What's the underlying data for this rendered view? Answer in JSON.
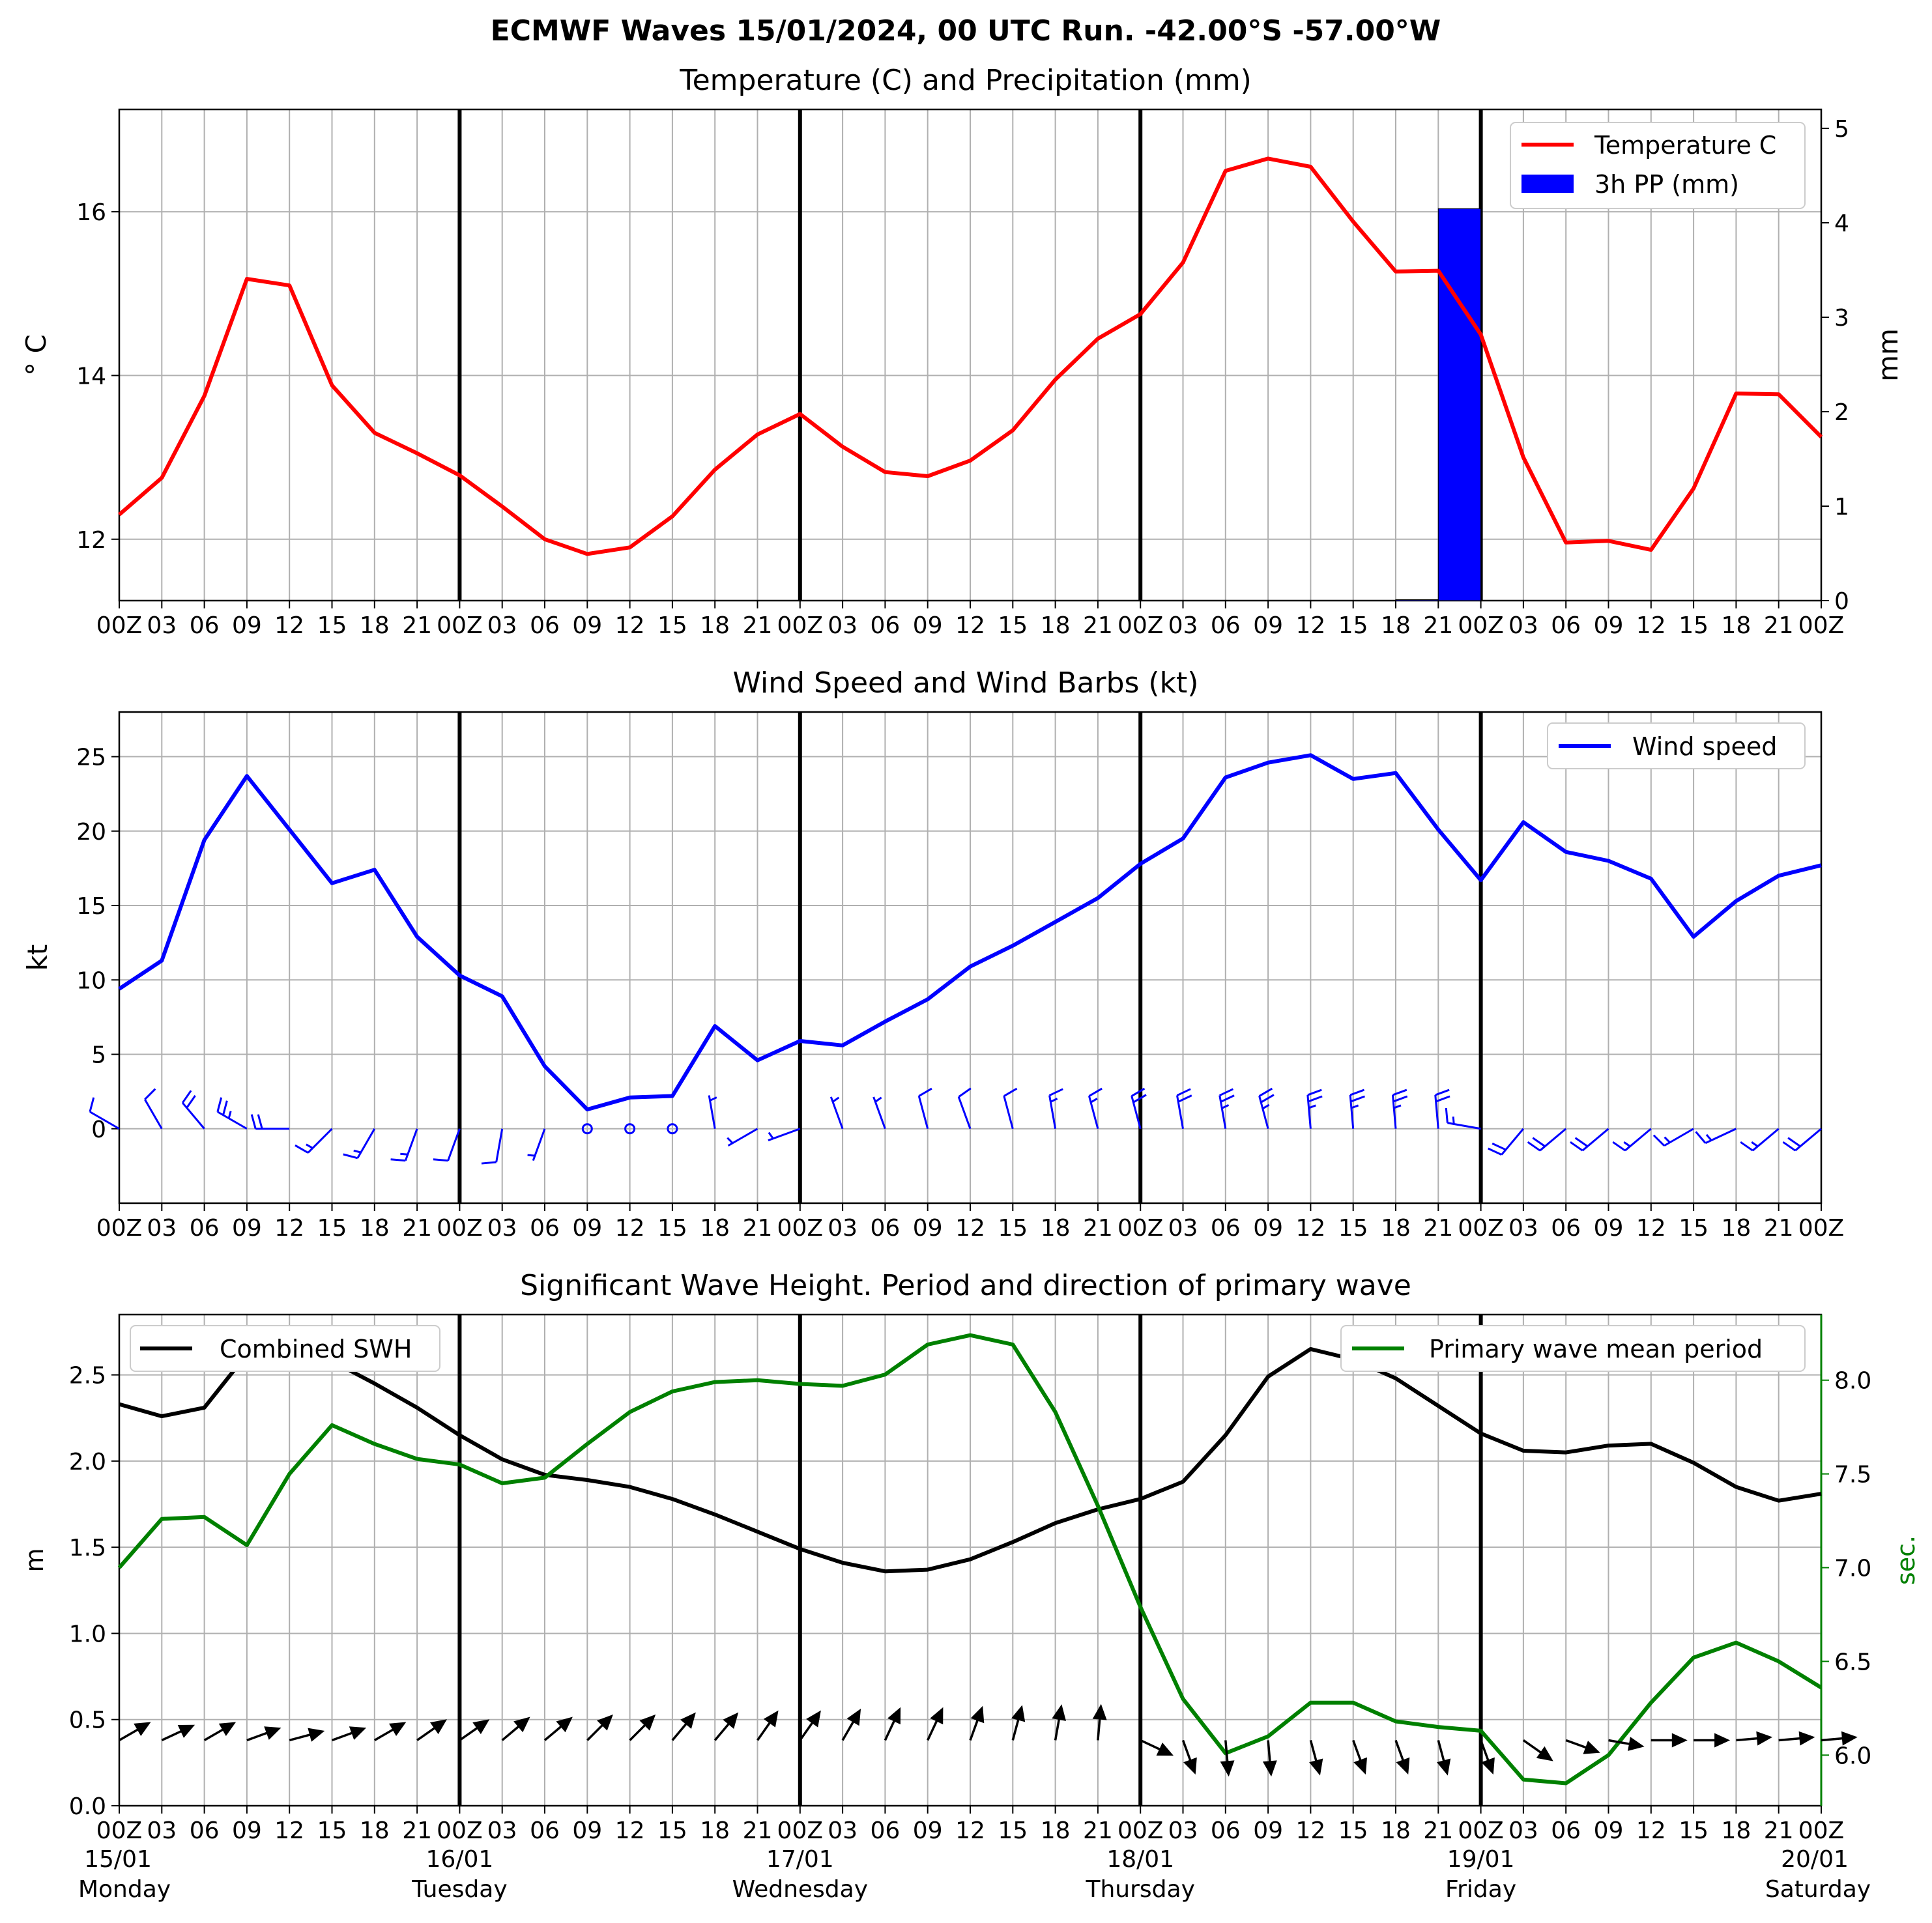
{
  "title": "ECMWF Waves 15/01/2024, 00 UTC Run. -42.00°S -57.00°W",
  "x_tick_labels": [
    "00Z",
    "03",
    "06",
    "09",
    "12",
    "15",
    "18",
    "21",
    "00Z",
    "03",
    "06",
    "09",
    "12",
    "15",
    "18",
    "21",
    "00Z",
    "03",
    "06",
    "09",
    "12",
    "15",
    "18",
    "21",
    "00Z",
    "03",
    "06",
    "09",
    "12",
    "15",
    "18",
    "21",
    "00Z",
    "03",
    "06",
    "09",
    "12",
    "15",
    "18",
    "21",
    "00Z"
  ],
  "x_tick_labels_panel3": [
    "00Z",
    "03",
    "06",
    "09",
    "12",
    "15",
    "18",
    "21",
    "00Z",
    "03",
    "06",
    "09",
    "12",
    "15",
    "18",
    "21",
    "00Z",
    "03",
    "06",
    "09",
    "12",
    "15",
    "18",
    "21",
    "00Z",
    "03",
    "06",
    "09",
    "12",
    "15",
    "18",
    "21",
    "00Z",
    "03",
    "06",
    "09",
    "12",
    "15",
    "18",
    "21",
    "00Z"
  ],
  "day_labels": [
    {
      "date": "15/01",
      "day": "Monday"
    },
    {
      "date": "16/01",
      "day": "Tuesday"
    },
    {
      "date": "17/01",
      "day": "Wednesday"
    },
    {
      "date": "18/01",
      "day": "Thursday"
    },
    {
      "date": "19/01",
      "day": "Friday"
    },
    {
      "date": "20/01",
      "day": "Saturday"
    }
  ],
  "colors": {
    "temperature": "#ff0000",
    "precip": "#0000ff",
    "wind": "#0000ff",
    "swh": "#000000",
    "period": "#008000",
    "grid": "#b0b0b0"
  },
  "chart_data": [
    {
      "type": "line",
      "title": "Temperature (C) and Precipitation (mm)",
      "ylabel": "$^\\circ$C",
      "ylabel_display": "° C",
      "y2label": "mm",
      "ylim": [
        11.25,
        17.25
      ],
      "y_ticks": [
        12,
        14,
        16
      ],
      "y2lim": [
        0,
        5.2
      ],
      "y2_ticks": [
        0,
        1,
        2,
        3,
        4,
        5
      ],
      "x_hours": [
        0,
        3,
        6,
        9,
        12,
        15,
        18,
        21,
        24,
        27,
        30,
        33,
        36,
        39,
        42,
        45,
        48,
        51,
        54,
        57,
        60,
        63,
        66,
        69,
        72,
        75,
        78,
        81,
        84,
        87,
        90,
        93,
        96,
        99,
        102,
        105,
        108,
        111,
        114,
        117,
        120
      ],
      "legend_position": "top-right",
      "series": [
        {
          "name": "Temperature C",
          "type": "line",
          "color": "#ff0000",
          "values": [
            12.3,
            12.75,
            13.75,
            15.18,
            15.1,
            13.88,
            13.3,
            13.05,
            12.78,
            12.4,
            12.0,
            11.82,
            11.9,
            12.28,
            12.85,
            13.28,
            13.53,
            13.13,
            12.82,
            12.77,
            12.96,
            13.33,
            13.95,
            14.45,
            14.75,
            15.38,
            16.5,
            16.65,
            16.55,
            15.88,
            15.27,
            15.28,
            14.5,
            13.0,
            11.96,
            11.98,
            11.87,
            12.62,
            13.78,
            13.77,
            13.25
          ]
        },
        {
          "name": "3h PP (mm)",
          "type": "bar",
          "color": "#0000ff",
          "bars": [
            {
              "x_start": 90,
              "x_end": 93,
              "value": 0.01
            },
            {
              "x_start": 93,
              "x_end": 96,
              "value": 4.15
            }
          ]
        }
      ]
    },
    {
      "type": "line",
      "title": "Wind Speed and Wind Barbs (kt)",
      "ylabel": "kt",
      "ylim": [
        -5,
        28
      ],
      "y_ticks": [
        0,
        5,
        10,
        15,
        20,
        25
      ],
      "x_hours": [
        0,
        3,
        6,
        9,
        12,
        15,
        18,
        21,
        24,
        27,
        30,
        33,
        36,
        39,
        42,
        45,
        48,
        51,
        54,
        57,
        60,
        63,
        66,
        69,
        72,
        75,
        78,
        81,
        84,
        87,
        90,
        93,
        96,
        99,
        102,
        105,
        108,
        111,
        114,
        117,
        120
      ],
      "legend_position": "top-right",
      "series": [
        {
          "name": "Wind speed",
          "color": "#0000ff",
          "values": [
            9.4,
            11.3,
            19.4,
            23.7,
            20.1,
            16.5,
            17.4,
            12.9,
            10.3,
            8.9,
            4.2,
            1.3,
            2.1,
            2.2,
            6.9,
            4.6,
            5.9,
            5.6,
            7.2,
            8.7,
            10.9,
            12.3,
            13.9,
            15.5,
            17.8,
            19.5,
            23.6,
            24.6,
            25.1,
            23.5,
            23.9,
            20.1,
            16.7,
            20.6,
            18.6,
            18.0,
            16.8,
            12.9,
            15.3,
            17.0,
            17.7
          ]
        }
      ],
      "wind_barbs": {
        "y": 0,
        "direction_from_deg": [
          300,
          330,
          320,
          300,
          270,
          225,
          210,
          200,
          200,
          190,
          200,
          0,
          0,
          0,
          350,
          240,
          250,
          340,
          340,
          345,
          340,
          345,
          350,
          345,
          345,
          350,
          350,
          345,
          355,
          355,
          355,
          355,
          280,
          220,
          230,
          230,
          230,
          240,
          245,
          230,
          230
        ],
        "calm": [
          false,
          false,
          false,
          false,
          false,
          false,
          false,
          false,
          false,
          false,
          false,
          true,
          true,
          true,
          false,
          false,
          false,
          false,
          false,
          false,
          false,
          false,
          false,
          false,
          false,
          false,
          false,
          false,
          false,
          false,
          false,
          false,
          false,
          false,
          false,
          false,
          false,
          false,
          false,
          false,
          false
        ]
      }
    },
    {
      "type": "line",
      "title": "Significant Wave Height. Period and direction of primary wave",
      "ylabel": "m",
      "y2label": "sec.",
      "ylim": [
        0,
        2.85
      ],
      "y_ticks": [
        0.0,
        0.5,
        1.0,
        1.5,
        2.0,
        2.5
      ],
      "y2lim": [
        5.73,
        8.35
      ],
      "y2_ticks": [
        6.0,
        6.5,
        7.0,
        7.5,
        8.0
      ],
      "x_hours": [
        0,
        3,
        6,
        9,
        12,
        15,
        18,
        21,
        24,
        27,
        30,
        33,
        36,
        39,
        42,
        45,
        48,
        51,
        54,
        57,
        60,
        63,
        66,
        69,
        72,
        75,
        78,
        81,
        84,
        87,
        90,
        93,
        96,
        99,
        102,
        105,
        108,
        111,
        114,
        117,
        120
      ],
      "series": [
        {
          "name": "Combined SWH",
          "axis": "left",
          "color": "#000000",
          "legend_position": "top-left",
          "values": [
            2.33,
            2.26,
            2.31,
            2.62,
            2.67,
            2.58,
            2.45,
            2.31,
            2.15,
            2.01,
            1.92,
            1.89,
            1.85,
            1.78,
            1.69,
            1.59,
            1.49,
            1.41,
            1.36,
            1.37,
            1.43,
            1.53,
            1.64,
            1.72,
            1.78,
            1.88,
            2.15,
            2.49,
            2.65,
            2.59,
            2.48,
            2.32,
            2.16,
            2.06,
            2.05,
            2.09,
            2.1,
            1.99,
            1.85,
            1.77,
            1.81
          ]
        },
        {
          "name": "Primary wave mean period",
          "axis": "right",
          "color": "#008000",
          "legend_position": "top-right",
          "values": [
            7.0,
            7.26,
            7.27,
            7.12,
            7.5,
            7.76,
            7.66,
            7.58,
            7.55,
            7.45,
            7.48,
            7.66,
            7.83,
            7.94,
            7.99,
            8.0,
            7.98,
            7.97,
            8.03,
            8.19,
            8.24,
            8.19,
            7.83,
            7.33,
            6.79,
            6.3,
            6.01,
            6.1,
            6.28,
            6.28,
            6.18,
            6.15,
            6.13,
            5.87,
            5.85,
            6.0,
            6.28,
            6.52,
            6.6,
            6.5,
            6.36
          ]
        }
      ],
      "wave_arrows": {
        "y": 0.38,
        "direction_to_deg": [
          60,
          65,
          60,
          70,
          75,
          70,
          60,
          55,
          55,
          50,
          50,
          45,
          45,
          40,
          40,
          35,
          35,
          30,
          25,
          25,
          20,
          15,
          10,
          5,
          115,
          160,
          175,
          175,
          165,
          160,
          160,
          165,
          160,
          125,
          110,
          100,
          90,
          90,
          85,
          85,
          85
        ]
      }
    }
  ]
}
